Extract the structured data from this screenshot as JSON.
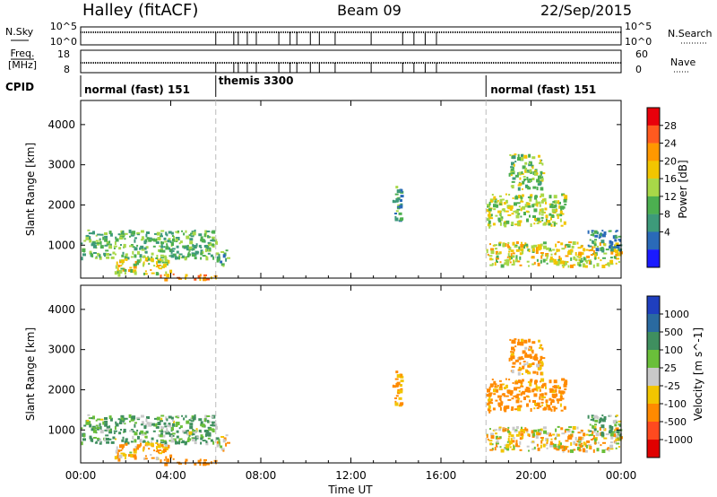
{
  "header": {
    "station": "Halley (fitACF)",
    "beam": "Beam 09",
    "date": "22/Sep/2015"
  },
  "top_strips": {
    "nsky": {
      "label": "N.Sky",
      "ticks": [
        "10^5",
        "10^0"
      ]
    },
    "nsearch": {
      "label": "N.Search",
      "ticks": [
        "10^5",
        "10^0"
      ]
    },
    "freq": {
      "label_line1": "Freq.",
      "label_line2": "[MHz]",
      "ticks": [
        "18",
        "8"
      ]
    },
    "nave": {
      "label": "Nave",
      "ticks": [
        "60",
        "0"
      ]
    },
    "cpid": {
      "label": "CPID"
    }
  },
  "cpid_segments": [
    {
      "name": "normal (fast) 151",
      "start_hour": 0
    },
    {
      "name": "themis 3300",
      "start_hour": 6
    },
    {
      "name": "normal (fast) 151",
      "start_hour": 18
    }
  ],
  "axes": {
    "x_label": "Time UT",
    "x_ticks": [
      "00:00",
      "04:00",
      "08:00",
      "12:00",
      "16:00",
      "20:00",
      "00:00"
    ],
    "y_label": "Slant Range [km]",
    "y_ticks": [
      "1000",
      "2000",
      "3000",
      "4000"
    ]
  },
  "colorbars": {
    "power": {
      "label": "Power [dB]",
      "ticks": [
        "4",
        "8",
        "12",
        "16",
        "20",
        "24",
        "28"
      ],
      "colors": [
        "#1a1aff",
        "#2a6ab8",
        "#3d9a7a",
        "#4caf50",
        "#a8d848",
        "#f2c500",
        "#ff9800",
        "#ff5a1f",
        "#e8000b"
      ]
    },
    "velocity": {
      "label": "Velocity [m s^-1]",
      "ticks": [
        "1000",
        "500",
        "100",
        "25",
        "-25",
        "-100",
        "-500",
        "-1000"
      ],
      "colors": [
        "#1f3fbf",
        "#2a6aa0",
        "#3f8f5f",
        "#6abf3a",
        "#c9c9c9",
        "#f2c500",
        "#ff8a00",
        "#ff4a1f",
        "#e00000"
      ]
    }
  },
  "chart_data": {
    "type": "heatmap",
    "x_unit": "hours UT",
    "xlim": [
      0,
      24
    ],
    "y_unit": "km",
    "ylim": [
      180,
      4600
    ],
    "panels": [
      "power",
      "velocity"
    ],
    "regions": [
      {
        "x": [
          0.0,
          6.0
        ],
        "y": [
          700,
          1400
        ],
        "value_power": 14,
        "value_velocity": 120
      },
      {
        "x": [
          1.5,
          4.0
        ],
        "y": [
          300,
          700
        ],
        "value_power": 20,
        "value_velocity": -120
      },
      {
        "x": [
          3.5,
          6.0
        ],
        "y": [
          180,
          300
        ],
        "value_power": 26,
        "value_velocity": -300
      },
      {
        "x": [
          6.0,
          6.5
        ],
        "y": [
          500,
          900
        ],
        "value_power": 12,
        "value_velocity": -80
      },
      {
        "x": [
          13.8,
          14.2
        ],
        "y": [
          1500,
          2500
        ],
        "value_power": 12,
        "value_velocity": -150
      },
      {
        "x": [
          18.0,
          24.0
        ],
        "y": [
          500,
          1100
        ],
        "value_power": 20,
        "value_velocity": -60
      },
      {
        "x": [
          18.0,
          21.5
        ],
        "y": [
          1500,
          2300
        ],
        "value_power": 18,
        "value_velocity": -200
      },
      {
        "x": [
          19.0,
          20.5
        ],
        "y": [
          2400,
          3300
        ],
        "value_power": 16,
        "value_velocity": -150
      },
      {
        "x": [
          22.5,
          24.0
        ],
        "y": [
          900,
          1400
        ],
        "value_power": 10,
        "value_velocity": 100
      }
    ],
    "nsky_dropouts_hours": [
      6.0,
      6.8,
      7.0,
      7.4,
      7.8,
      8.8,
      9.3,
      9.6,
      10.2,
      10.6,
      11.3,
      12.9,
      14.3,
      14.8,
      15.3,
      15.8
    ],
    "cpid_boundaries_hours": [
      6.0,
      18.0
    ]
  }
}
